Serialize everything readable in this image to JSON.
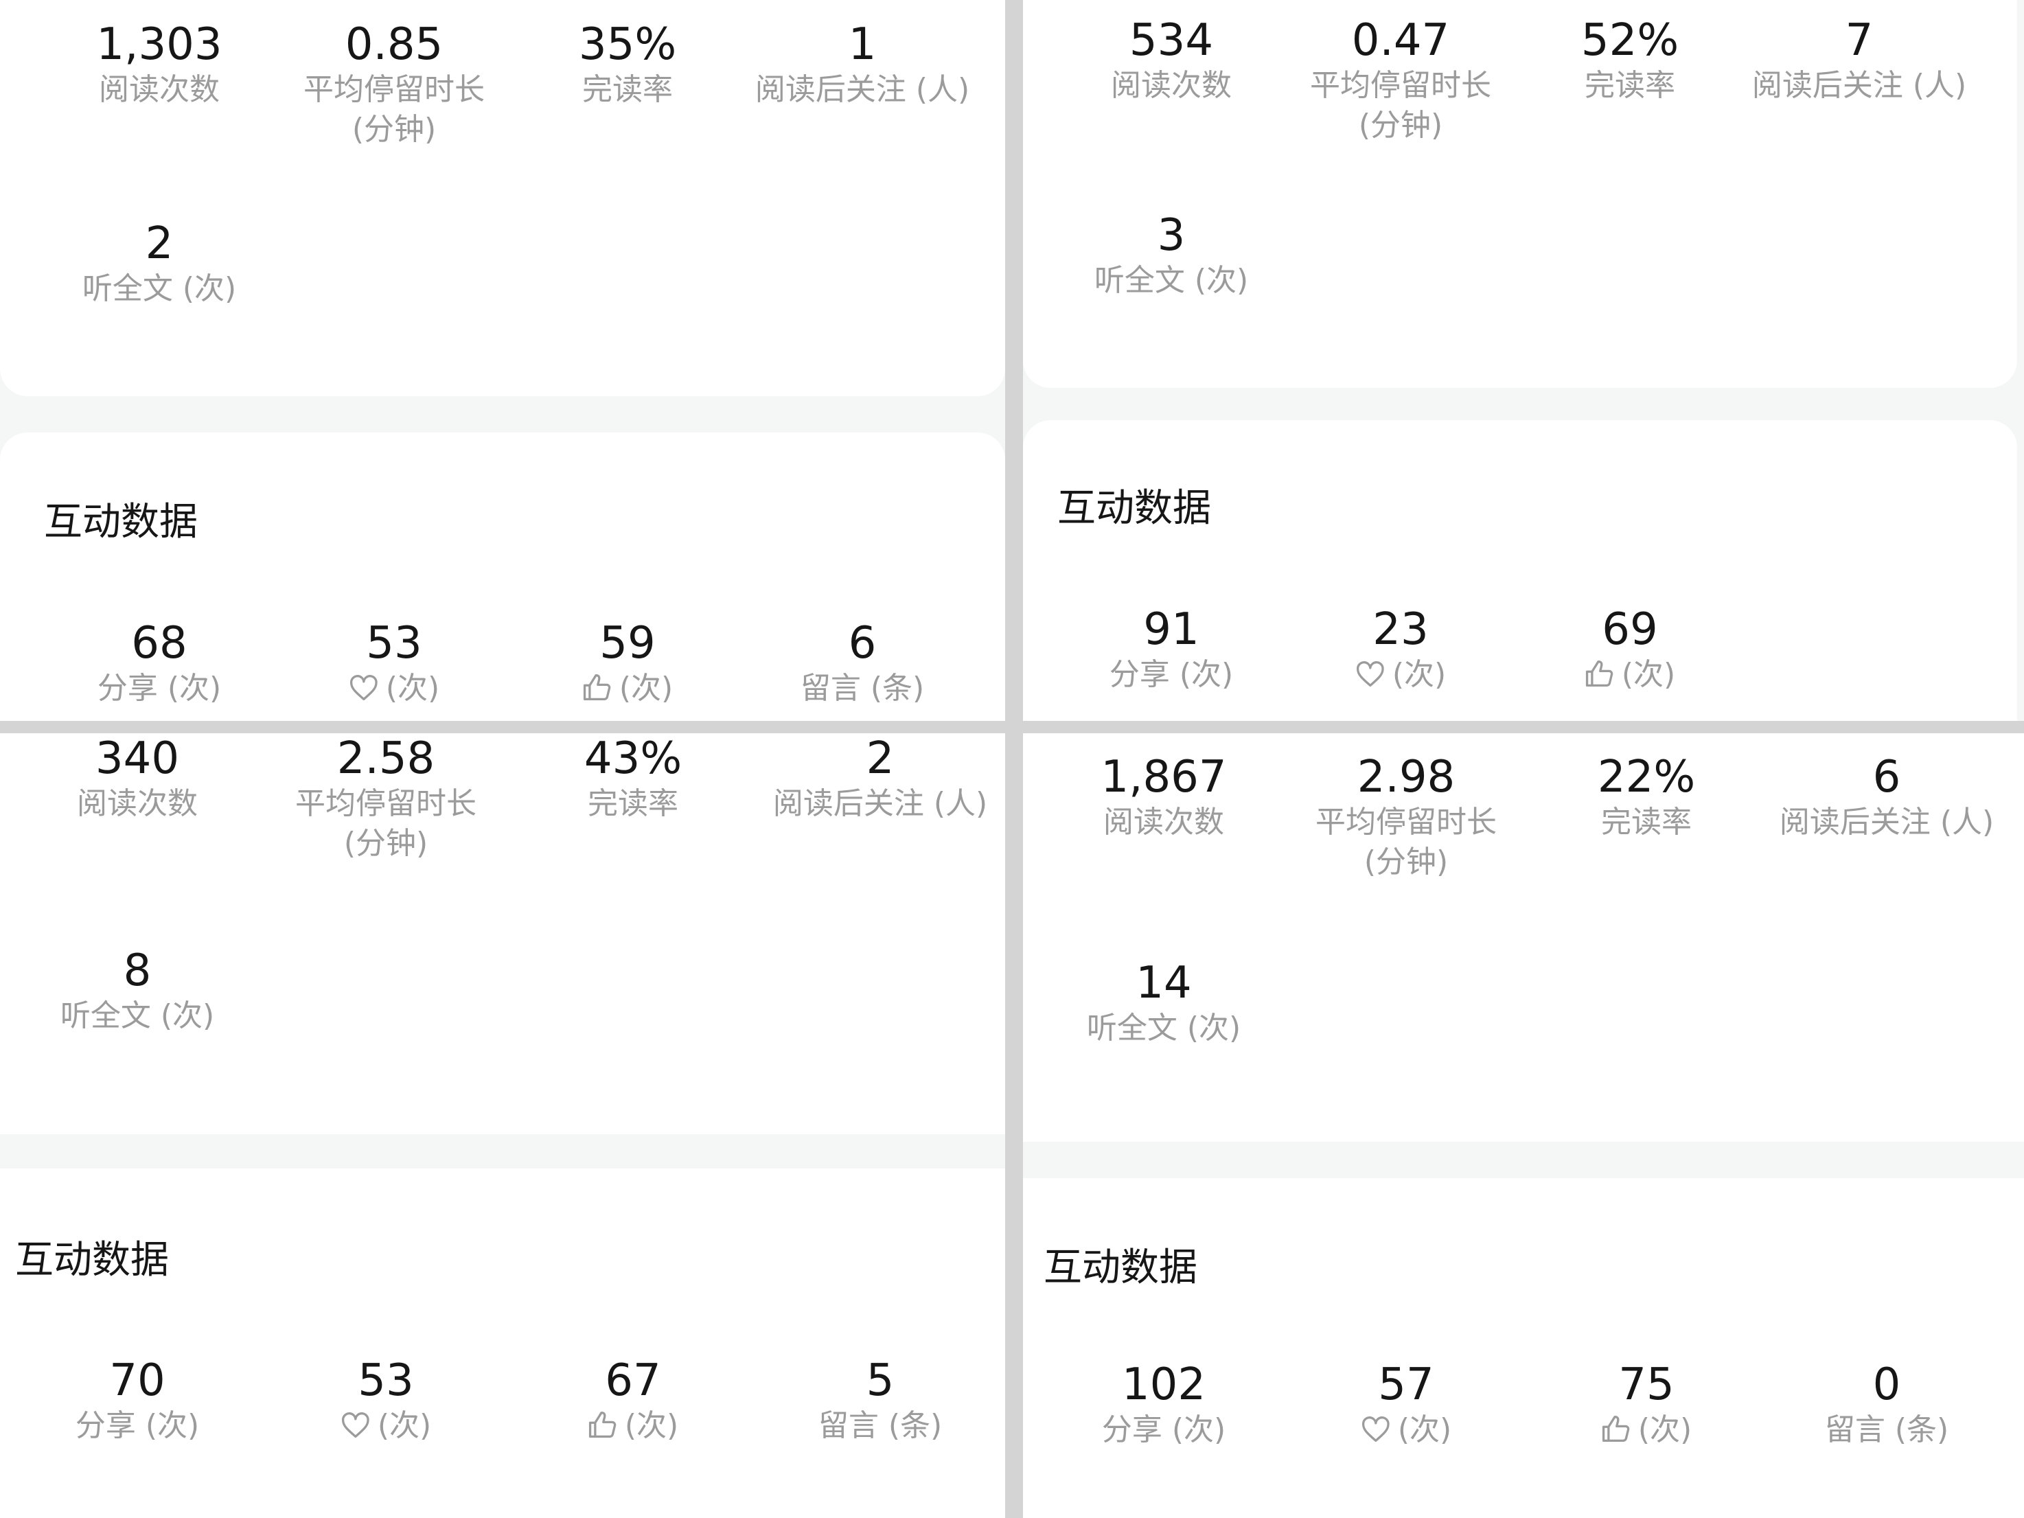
{
  "section_title": "互动数据",
  "icon_names": {
    "heart": "heart-icon",
    "thumb": "thumbs-up-icon"
  },
  "panels": [
    {
      "reading": [
        {
          "value": "1,303",
          "label": "阅读次数"
        },
        {
          "value": "0.85",
          "label": "平均停留时长",
          "label2": "(分钟)"
        },
        {
          "value": "35%",
          "label": "完读率"
        },
        {
          "value": "1",
          "label": "阅读后关注 (人)"
        },
        {
          "value": "2",
          "label": "听全文 (次)"
        }
      ],
      "interaction": [
        {
          "value": "68",
          "label": "分享 (次)"
        },
        {
          "value": "53",
          "label": "(次)",
          "icon": "heart"
        },
        {
          "value": "59",
          "label": "(次)",
          "icon": "thumb"
        },
        {
          "value": "6",
          "label": "留言 (条)"
        }
      ]
    },
    {
      "reading": [
        {
          "value": "534",
          "label": "阅读次数"
        },
        {
          "value": "0.47",
          "label": "平均停留时长",
          "label2": "(分钟)"
        },
        {
          "value": "52%",
          "label": "完读率"
        },
        {
          "value": "7",
          "label": "阅读后关注 (人)"
        },
        {
          "value": "3",
          "label": "听全文 (次)"
        }
      ],
      "interaction": [
        {
          "value": "91",
          "label": "分享 (次)"
        },
        {
          "value": "23",
          "label": "(次)",
          "icon": "heart"
        },
        {
          "value": "69",
          "label": "(次)",
          "icon": "thumb"
        }
      ]
    },
    {
      "reading": [
        {
          "value": "340",
          "label": "阅读次数"
        },
        {
          "value": "2.58",
          "label": "平均停留时长",
          "label2": "(分钟)"
        },
        {
          "value": "43%",
          "label": "完读率"
        },
        {
          "value": "2",
          "label": "阅读后关注 (人)"
        },
        {
          "value": "8",
          "label": "听全文 (次)"
        }
      ],
      "interaction": [
        {
          "value": "70",
          "label": "分享 (次)"
        },
        {
          "value": "53",
          "label": "(次)",
          "icon": "heart"
        },
        {
          "value": "67",
          "label": "(次)",
          "icon": "thumb"
        },
        {
          "value": "5",
          "label": "留言 (条)"
        }
      ]
    },
    {
      "reading": [
        {
          "value": "1,867",
          "label": "阅读次数"
        },
        {
          "value": "2.98",
          "label": "平均停留时长",
          "label2": "(分钟)"
        },
        {
          "value": "22%",
          "label": "完读率"
        },
        {
          "value": "6",
          "label": "阅读后关注 (人)"
        },
        {
          "value": "14",
          "label": "听全文 (次)"
        }
      ],
      "interaction": [
        {
          "value": "102",
          "label": "分享 (次)"
        },
        {
          "value": "57",
          "label": "(次)",
          "icon": "heart"
        },
        {
          "value": "75",
          "label": "(次)",
          "icon": "thumb"
        },
        {
          "value": "0",
          "label": "留言 (条)"
        }
      ]
    }
  ]
}
